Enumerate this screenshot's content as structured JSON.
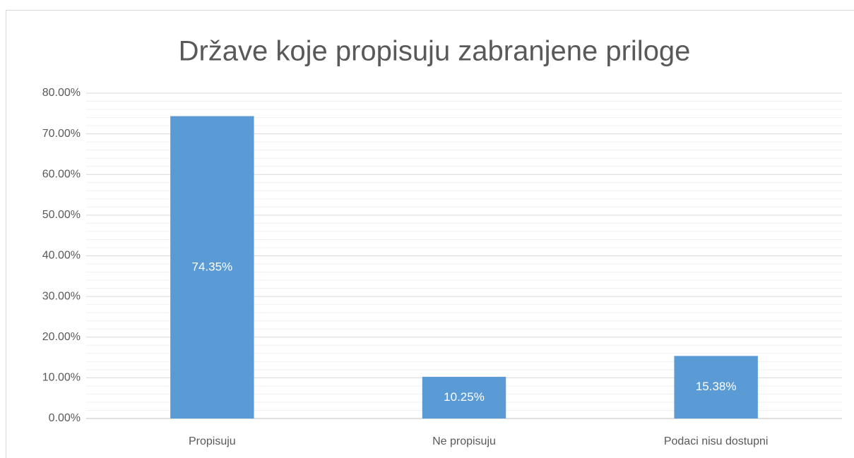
{
  "chart_data": {
    "type": "bar",
    "title": "Države koje propisuju zabranjene priloge",
    "categories": [
      "Propisuju",
      "Ne propisuju",
      "Podaci nisu dostupni"
    ],
    "values": [
      74.35,
      10.25,
      15.38
    ],
    "value_labels": [
      "74.35%",
      "10.25%",
      "15.38%"
    ],
    "color": "#5b9bd5",
    "ylim": [
      0,
      80
    ],
    "yticks": [
      {
        "value": 0,
        "label": "0.00%"
      },
      {
        "value": 10,
        "label": "10.00%"
      },
      {
        "value": 20,
        "label": "20.00%"
      },
      {
        "value": 30,
        "label": "30.00%"
      },
      {
        "value": 40,
        "label": "40.00%"
      },
      {
        "value": 50,
        "label": "50.00%"
      },
      {
        "value": 60,
        "label": "60.00%"
      },
      {
        "value": 70,
        "label": "70.00%"
      },
      {
        "value": 80,
        "label": "80.00%"
      }
    ],
    "grid": true,
    "minor_grid": true
  }
}
